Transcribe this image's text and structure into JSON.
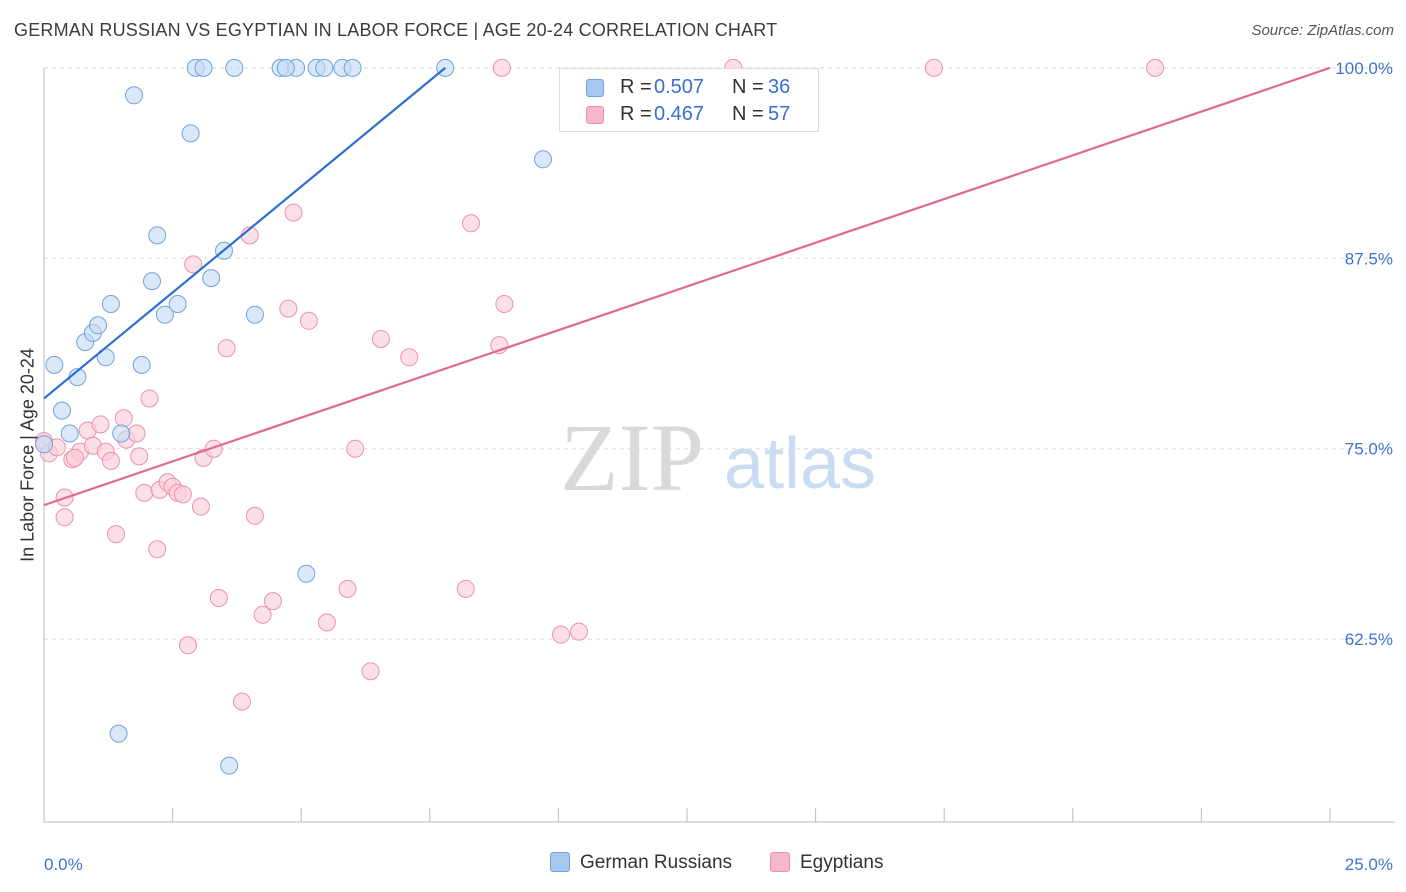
{
  "title": "GERMAN RUSSIAN VS EGYPTIAN IN LABOR FORCE | AGE 20-24 CORRELATION CHART",
  "source": "Source: ZipAtlas.com",
  "watermark": {
    "zip": "ZIP",
    "atlas": "atlas"
  },
  "legend": {
    "r_label": "R =",
    "n_label": "N =",
    "rows": [
      {
        "r": "0.507",
        "n": "36",
        "color": "#a9c8f0"
      },
      {
        "r": "0.467",
        "n": "57",
        "color": "#f8b8cc"
      }
    ]
  },
  "bottom_legend": {
    "series1": "German Russians",
    "series2": "Egyptians"
  },
  "chart_data": {
    "type": "scatter",
    "title": "GERMAN RUSSIAN VS EGYPTIAN IN LABOR FORCE | AGE 20-24 CORRELATION CHART",
    "xlabel": "",
    "ylabel": "In Labor Force | Age 20-24",
    "xlim": [
      0,
      25
    ],
    "ylim": [
      50.5,
      101.5
    ],
    "x_tick_labels": [
      "0.0%",
      "25.0%"
    ],
    "y_ticks": [
      62.5,
      75.0,
      87.5,
      100.0
    ],
    "y_tick_labels": [
      "62.5%",
      "75.0%",
      "87.5%",
      "100.0%"
    ],
    "grid": true,
    "series": [
      {
        "name": "German Russians",
        "color": "#6ea3e0",
        "fill": "#c6dcf5",
        "line_color": "#2d6fd1",
        "trend": {
          "x": [
            0.0,
            7.8
          ],
          "y": [
            78.3,
            100.0
          ]
        },
        "points": [
          [
            0.0,
            75.3
          ],
          [
            0.2,
            80.5
          ],
          [
            0.35,
            77.5
          ],
          [
            0.5,
            76.0
          ],
          [
            0.65,
            79.7
          ],
          [
            0.8,
            82.0
          ],
          [
            0.95,
            82.6
          ],
          [
            1.05,
            83.1
          ],
          [
            1.2,
            81.0
          ],
          [
            1.3,
            84.5
          ],
          [
            1.5,
            76.0
          ],
          [
            1.75,
            98.2
          ],
          [
            1.9,
            80.5
          ],
          [
            2.1,
            86.0
          ],
          [
            2.2,
            89.0
          ],
          [
            2.35,
            83.8
          ],
          [
            2.6,
            84.5
          ],
          [
            2.85,
            95.7
          ],
          [
            2.95,
            100.0
          ],
          [
            3.1,
            100.0
          ],
          [
            3.25,
            86.2
          ],
          [
            3.5,
            88.0
          ],
          [
            3.6,
            54.2
          ],
          [
            3.7,
            100.0
          ],
          [
            4.1,
            83.8
          ],
          [
            4.6,
            100.0
          ],
          [
            4.9,
            100.0
          ],
          [
            5.1,
            66.8
          ],
          [
            5.3,
            100.0
          ],
          [
            5.45,
            100.0
          ],
          [
            5.8,
            100.0
          ],
          [
            6.0,
            100.0
          ],
          [
            7.8,
            100.0
          ],
          [
            9.7,
            94.0
          ],
          [
            1.45,
            56.3
          ],
          [
            4.7,
            100.0
          ]
        ]
      },
      {
        "name": "Egyptians",
        "color": "#f090ab",
        "fill": "#fad0dc",
        "line_color": "#e06894",
        "trend": {
          "x": [
            0.0,
            25.0
          ],
          "y": [
            71.3,
            100.0
          ]
        },
        "points": [
          [
            0.0,
            75.5
          ],
          [
            0.1,
            74.7
          ],
          [
            0.25,
            75.1
          ],
          [
            0.4,
            71.8
          ],
          [
            0.55,
            74.3
          ],
          [
            0.7,
            74.8
          ],
          [
            0.85,
            76.2
          ],
          [
            0.95,
            75.2
          ],
          [
            1.1,
            76.6
          ],
          [
            1.2,
            74.8
          ],
          [
            1.3,
            74.2
          ],
          [
            1.4,
            69.4
          ],
          [
            1.55,
            77.0
          ],
          [
            1.6,
            75.6
          ],
          [
            1.8,
            76.0
          ],
          [
            1.85,
            74.5
          ],
          [
            1.95,
            72.1
          ],
          [
            2.05,
            78.3
          ],
          [
            2.2,
            68.4
          ],
          [
            2.25,
            72.3
          ],
          [
            2.4,
            72.8
          ],
          [
            2.5,
            72.5
          ],
          [
            2.6,
            72.1
          ],
          [
            2.7,
            72.0
          ],
          [
            2.8,
            62.1
          ],
          [
            2.9,
            87.1
          ],
          [
            3.05,
            71.2
          ],
          [
            3.1,
            74.4
          ],
          [
            3.3,
            75.0
          ],
          [
            3.4,
            65.2
          ],
          [
            3.55,
            81.6
          ],
          [
            3.85,
            58.4
          ],
          [
            4.0,
            89.0
          ],
          [
            4.1,
            70.6
          ],
          [
            4.25,
            64.1
          ],
          [
            4.45,
            65.0
          ],
          [
            4.75,
            84.2
          ],
          [
            4.85,
            90.5
          ],
          [
            5.15,
            83.4
          ],
          [
            5.5,
            63.6
          ],
          [
            5.9,
            65.8
          ],
          [
            6.05,
            75.0
          ],
          [
            6.35,
            60.4
          ],
          [
            6.55,
            82.2
          ],
          [
            7.1,
            81.0
          ],
          [
            8.2,
            65.8
          ],
          [
            8.3,
            89.8
          ],
          [
            8.85,
            81.8
          ],
          [
            8.95,
            84.5
          ],
          [
            8.9,
            100.0
          ],
          [
            10.05,
            62.8
          ],
          [
            10.4,
            63.0
          ],
          [
            13.4,
            100.0
          ],
          [
            17.3,
            100.0
          ],
          [
            21.6,
            100.0
          ],
          [
            0.4,
            70.5
          ],
          [
            0.6,
            74.4
          ]
        ]
      }
    ]
  }
}
